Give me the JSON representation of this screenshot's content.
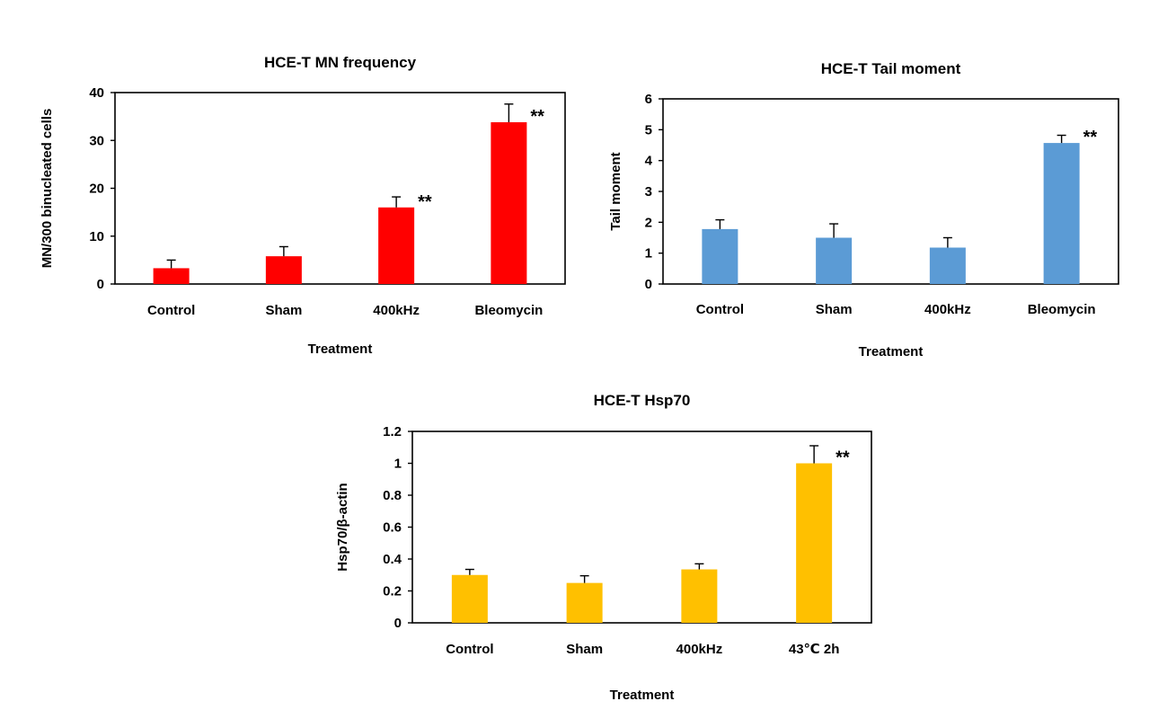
{
  "chart_data": [
    {
      "type": "bar",
      "title": "HCE-T MN frequency",
      "xlabel": "Treatment",
      "ylabel": "MN/300 binucleated cells",
      "categories": [
        "Control",
        "Sham",
        "400kHz",
        "Bleomycin"
      ],
      "values": [
        3.3,
        5.8,
        16.0,
        33.8
      ],
      "error": [
        1.7,
        2.0,
        2.2,
        3.8
      ],
      "significance": [
        "",
        "",
        "**",
        "**"
      ],
      "ylim": [
        0,
        40
      ],
      "yticks": [
        0,
        10,
        20,
        30,
        40
      ],
      "color": "#ff0000",
      "grid": false
    },
    {
      "type": "bar",
      "title": "HCE-T Tail moment",
      "xlabel": "Treatment",
      "ylabel": "Tail moment",
      "categories": [
        "Control",
        "Sham",
        "400kHz",
        "Bleomycin"
      ],
      "values": [
        1.78,
        1.5,
        1.18,
        4.57
      ],
      "error": [
        0.3,
        0.45,
        0.32,
        0.25
      ],
      "significance": [
        "",
        "",
        "",
        "**"
      ],
      "ylim": [
        0,
        6
      ],
      "yticks": [
        0,
        1,
        2,
        3,
        4,
        5,
        6
      ],
      "color": "#5b9bd5",
      "grid": false
    },
    {
      "type": "bar",
      "title": "HCE-T Hsp70",
      "xlabel": "Treatment",
      "ylabel": "Hsp70/β-actin",
      "categories": [
        "Control",
        "Sham",
        "400kHz",
        "43℃ 2h"
      ],
      "values": [
        0.3,
        0.25,
        0.335,
        1.0
      ],
      "error": [
        0.035,
        0.045,
        0.035,
        0.11
      ],
      "significance": [
        "",
        "",
        "",
        "**"
      ],
      "ylim": [
        0,
        1.2
      ],
      "yticks": [
        0,
        0.2,
        0.4,
        0.6,
        0.8,
        1,
        1.2
      ],
      "color": "#ffc000",
      "grid": false
    }
  ]
}
